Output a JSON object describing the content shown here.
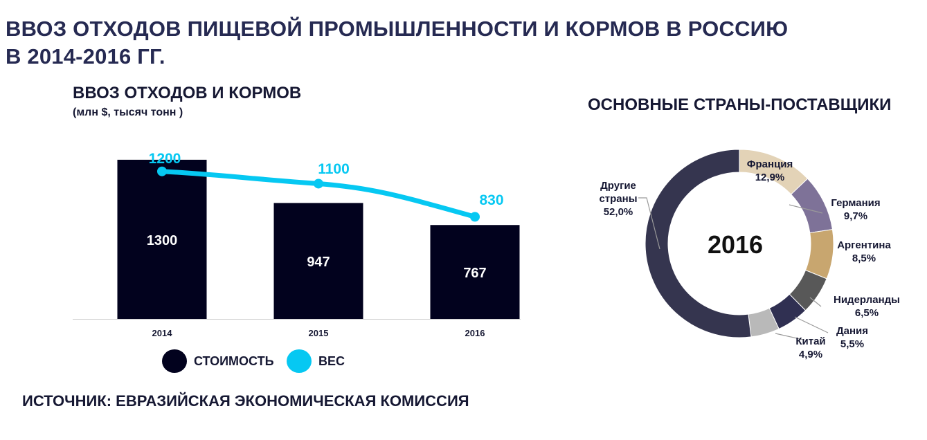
{
  "header": {
    "title_line1": "ВВОЗ ОТХОДОВ ПИЩЕВОЙ ПРОМЫШЛЕННОСТИ И КОРМОВ В РОССИЮ",
    "title_line2": "В 2014-2016 ГГ."
  },
  "footer": {
    "source": "ИСТОЧНИК: ЕВРАЗИЙСКАЯ ЭКОНОМИЧЕСКАЯ КОМИССИЯ"
  },
  "colors": {
    "bar": "#02021e",
    "line": "#06c8f2",
    "text": "#161833"
  },
  "chart_data": [
    {
      "type": "bar",
      "title": "ВВОЗ ОТХОДОВ И КОРМОВ",
      "subtitle": "(млн $, тысяч тонн )",
      "categories": [
        "2014",
        "2015",
        "2016"
      ],
      "ylim": [
        0,
        1400
      ],
      "series": [
        {
          "name": "СТОИМОСТЬ",
          "kind": "bar",
          "color": "#02021e",
          "values": [
            1300,
            947,
            767
          ]
        },
        {
          "name": "ВЕС",
          "kind": "line",
          "color": "#06c8f2",
          "values": [
            1200,
            1100,
            830
          ]
        }
      ],
      "legend": "bottom"
    },
    {
      "type": "pie",
      "donut": true,
      "title": "ОСНОВНЫЕ СТРАНЫ-ПОСТАВЩИКИ",
      "center_label": "2016",
      "slices": [
        {
          "label": "Франция",
          "value_label": "12,9%",
          "value": 12.9,
          "color": "#e3d3b7"
        },
        {
          "label": "Германия",
          "value_label": "9,7%",
          "value": 9.7,
          "color": "#7e7298"
        },
        {
          "label": "Аргентина",
          "value_label": "8,5%",
          "value": 8.5,
          "color": "#c8a66f"
        },
        {
          "label": "Нидерланды",
          "value_label": "6,5%",
          "value": 6.5,
          "color": "#585858"
        },
        {
          "label": "Дания",
          "value_label": "5,5%",
          "value": 5.5,
          "color": "#303052"
        },
        {
          "label": "Китай",
          "value_label": "4,9%",
          "value": 4.9,
          "color": "#b9b9b9"
        },
        {
          "label_lines": [
            "Другие",
            "страны"
          ],
          "value_label": "52,0%",
          "value": 52.0,
          "color": "#35354f"
        }
      ]
    }
  ]
}
